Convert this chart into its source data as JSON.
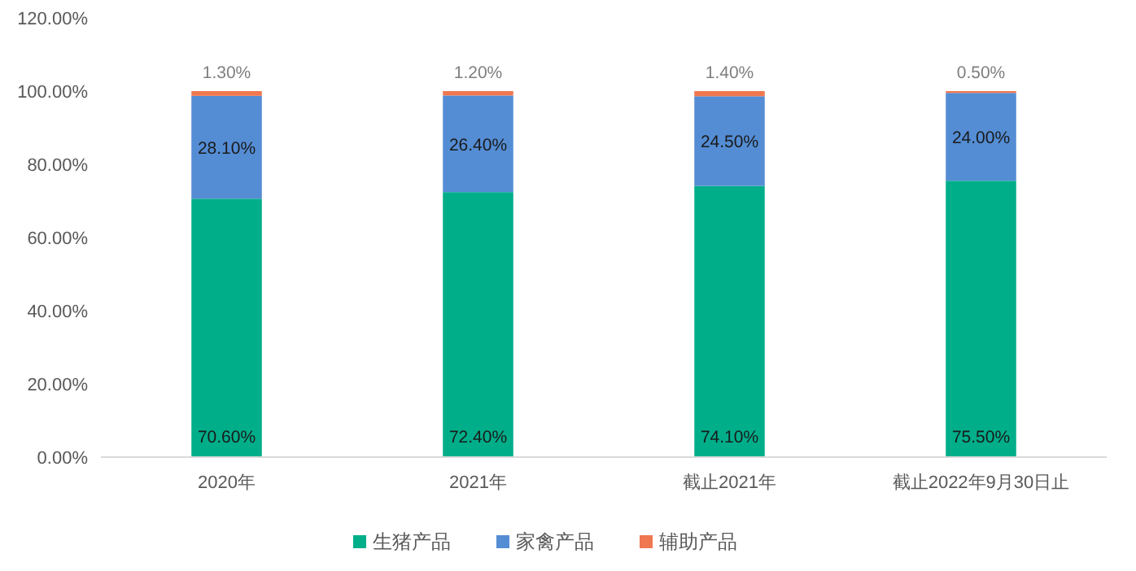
{
  "chart_data": {
    "type": "bar",
    "stacked": true,
    "categories": [
      "2020年",
      "2021年",
      "截止2021年",
      "截止2022年9月30日止"
    ],
    "series": [
      {
        "name": "生猪产品",
        "color": "#00ae8a",
        "values": [
          70.6,
          72.4,
          74.1,
          75.5
        ],
        "value_labels": [
          "70.60%",
          "72.40%",
          "74.10%",
          "75.50%"
        ]
      },
      {
        "name": "家禽产品",
        "color": "#548dd4",
        "values": [
          28.1,
          26.4,
          24.5,
          24.0
        ],
        "value_labels": [
          "28.10%",
          "26.40%",
          "24.50%",
          "24.00%"
        ]
      },
      {
        "name": "辅助产品",
        "color": "#f07850",
        "values": [
          1.3,
          1.2,
          1.4,
          0.5
        ],
        "value_labels": [
          "1.30%",
          "1.20%",
          "1.40%",
          "0.50%"
        ]
      }
    ],
    "ylim": [
      0,
      120
    ],
    "yticks": [
      {
        "value": 0,
        "label": "0.00%"
      },
      {
        "value": 20,
        "label": "20.00%"
      },
      {
        "value": 40,
        "label": "40.00%"
      },
      {
        "value": 60,
        "label": "60.00%"
      },
      {
        "value": 80,
        "label": "80.00%"
      },
      {
        "value": 100,
        "label": "100.00%"
      },
      {
        "value": 120,
        "label": "120.00%"
      }
    ],
    "grid": false,
    "legend": "bottom"
  }
}
